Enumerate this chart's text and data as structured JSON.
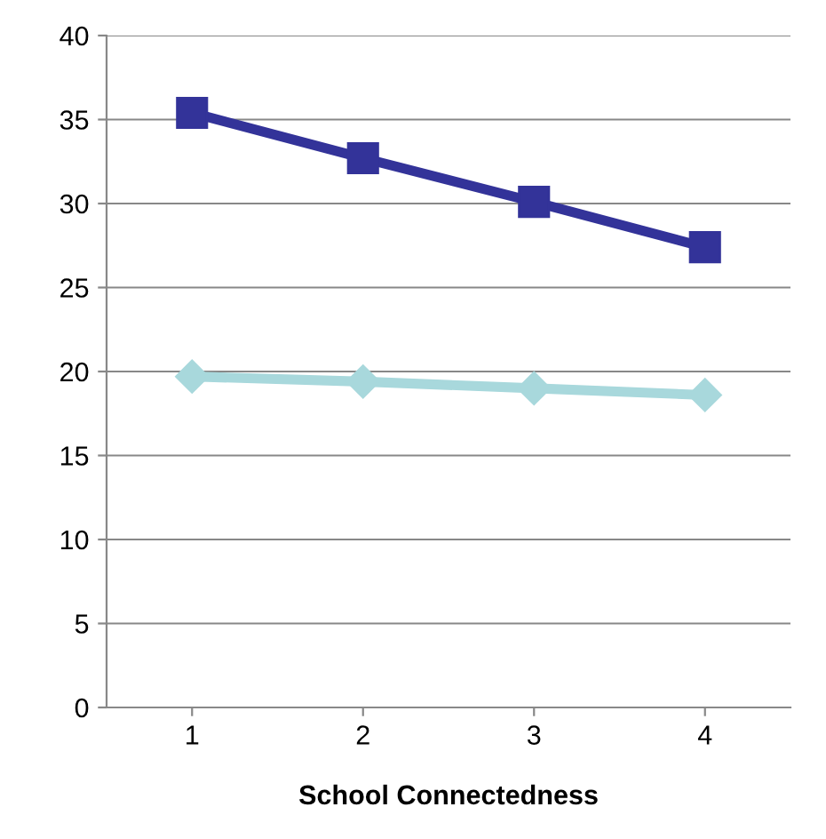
{
  "chart_data": {
    "type": "line",
    "xlabel": "School Connectedness",
    "categories": [
      "1",
      "2",
      "3",
      "4"
    ],
    "series": [
      {
        "color": "#333399",
        "values": [
          35.4,
          32.7,
          30.1,
          27.4
        ],
        "marker": "square"
      },
      {
        "color": "#a8d8dc",
        "values": [
          19.7,
          19.4,
          19.0,
          18.6
        ],
        "marker": "diamond"
      }
    ],
    "ylim": [
      0,
      40
    ],
    "yticks": [
      0,
      5,
      10,
      15,
      20,
      25,
      30,
      35,
      40
    ],
    "grid": "y",
    "legend": false
  }
}
